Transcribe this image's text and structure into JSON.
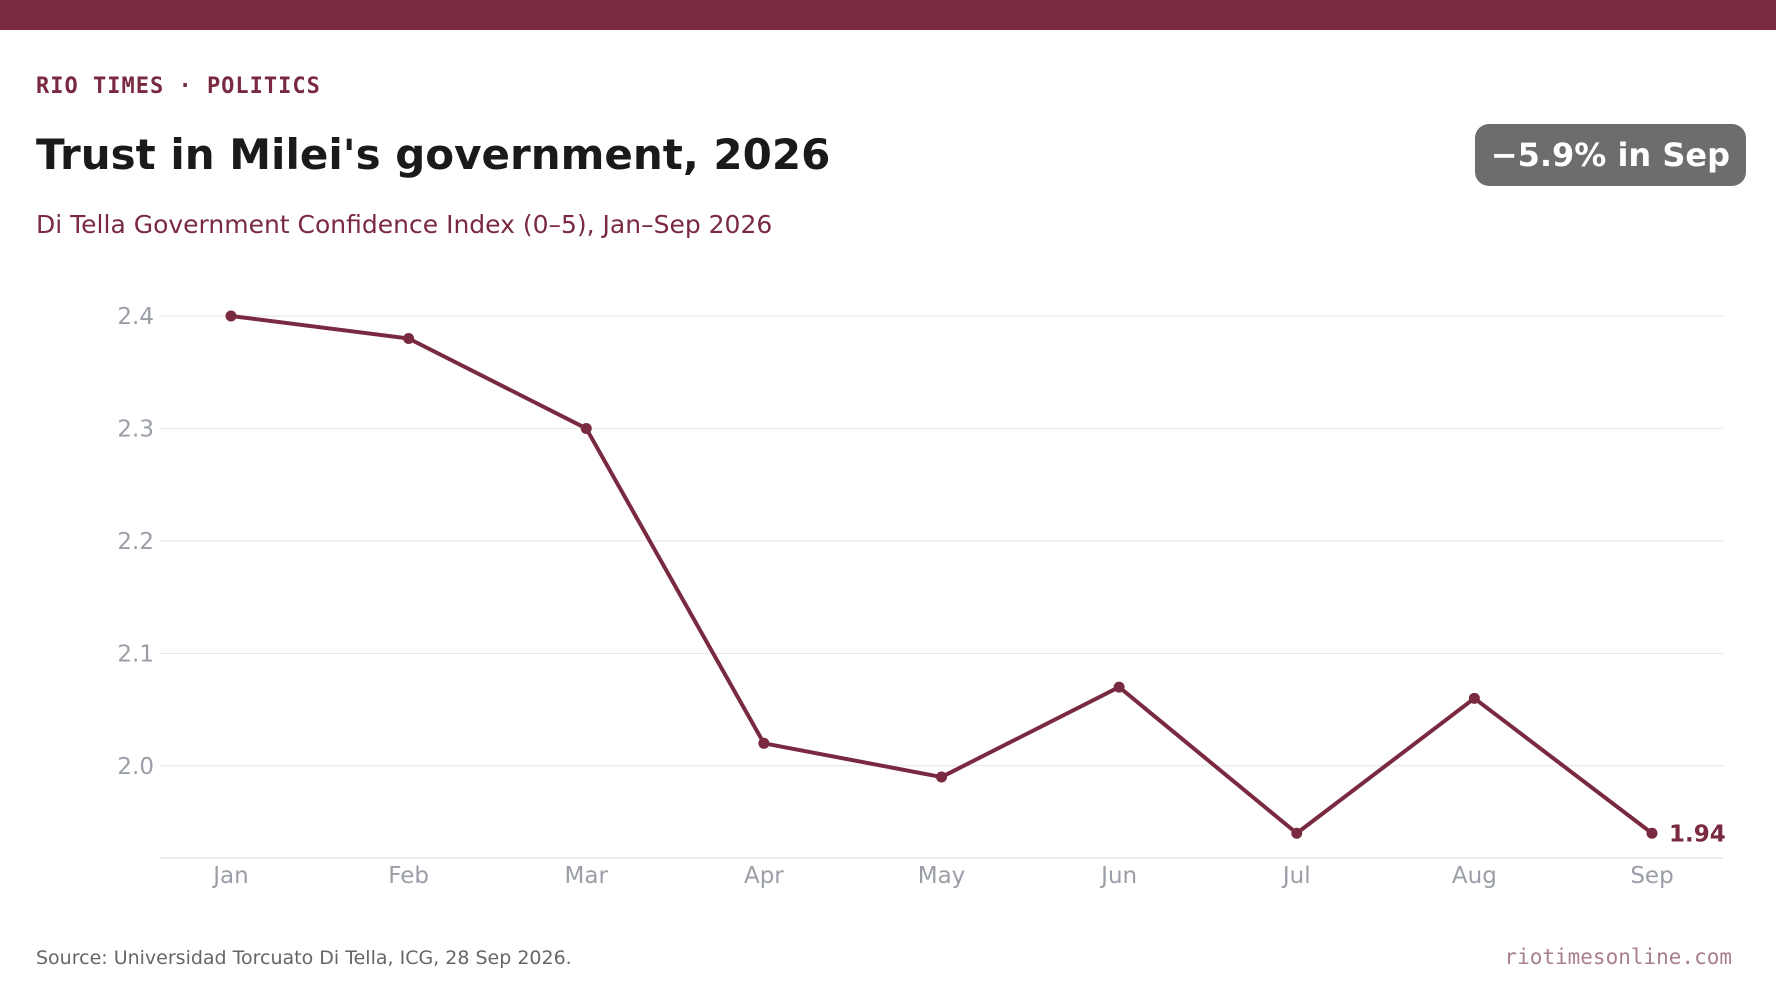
{
  "header": {
    "kicker": "RIO TIMES · POLITICS",
    "title": "Trust in Milei's government, 2026",
    "subtitle": "Di Tella Government Confidence Index (0–5), Jan–Sep 2026",
    "badge": "−5.9% in Sep"
  },
  "footer": {
    "source": "Source: Universidad Torcuato Di Tella, ICG, 28 Sep 2026.",
    "site": "riotimesonline.com"
  },
  "colors": {
    "accent": "#7a2a40",
    "badge_bg": "#6d6d6d",
    "axis_text": "#9a9ea6",
    "grid": "#e6e6e6"
  },
  "chart_data": {
    "type": "line",
    "title": "Trust in Milei's government, 2026",
    "xlabel": "",
    "ylabel": "",
    "categories": [
      "Jan",
      "Feb",
      "Mar",
      "Apr",
      "May",
      "Jun",
      "Jul",
      "Aug",
      "Sep"
    ],
    "series": [
      {
        "values": [
          2.4,
          2.38,
          2.3,
          2.02,
          1.99,
          2.07,
          1.94,
          2.06,
          1.94
        ]
      }
    ],
    "yticks": [
      2.0,
      2.1,
      2.2,
      2.3,
      2.4
    ],
    "ytick_labels": [
      "2.0",
      "2.1",
      "2.2",
      "2.3",
      "2.4"
    ],
    "ylim": [
      1.918,
      2.4
    ],
    "grid": true,
    "last_value_label": "1.94"
  }
}
